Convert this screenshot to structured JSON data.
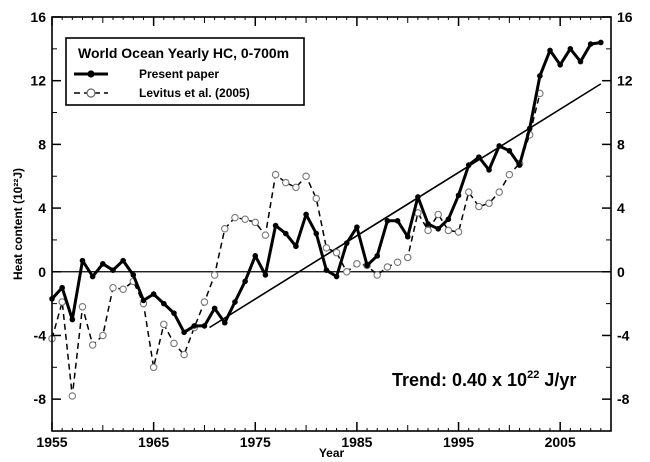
{
  "chart_data": {
    "type": "line",
    "xlabel": "Year",
    "ylabel": "Heat content (10²²J)",
    "xlim": [
      1955,
      2010
    ],
    "ylim": [
      -10,
      16
    ],
    "x_ticks": [
      1955,
      1965,
      1975,
      1985,
      1995,
      2005
    ],
    "y_ticks": [
      -8,
      -4,
      0,
      4,
      8,
      12,
      16
    ],
    "x_tick_labels": [
      "1955",
      "1965",
      "1975",
      "1985",
      "1995",
      "2005"
    ],
    "y_tick_labels": [
      "-8",
      "-4",
      "0",
      "4",
      "8",
      "12",
      "16"
    ],
    "y_tick_labels_right": [
      "-8",
      "-4",
      "0",
      "4",
      "8",
      "12",
      "16"
    ],
    "grid": false,
    "legend": {
      "title": "World Ocean Yearly HC, 0-700m",
      "position": "top-left",
      "entries": [
        "Present paper",
        "Levitus et al. (2005)"
      ]
    },
    "annotation": {
      "prefix": "Trend: 0.40 x 10",
      "superscript": "22",
      "suffix": " J/yr"
    },
    "zero_line": 0,
    "trend": {
      "x": [
        1970.5,
        2009
      ],
      "y": [
        -3.5,
        11.8
      ]
    },
    "series": [
      {
        "name": "Present paper",
        "style": "solid",
        "color": "#000000",
        "marker": "filled-circle",
        "x": [
          1955,
          1956,
          1957,
          1958,
          1959,
          1960,
          1961,
          1962,
          1963,
          1964,
          1965,
          1966,
          1967,
          1968,
          1969,
          1970,
          1971,
          1972,
          1973,
          1974,
          1975,
          1976,
          1977,
          1978,
          1979,
          1980,
          1981,
          1982,
          1983,
          1984,
          1985,
          1986,
          1987,
          1988,
          1989,
          1990,
          1991,
          1992,
          1993,
          1994,
          1995,
          1996,
          1997,
          1998,
          1999,
          2000,
          2001,
          2002,
          2003,
          2004,
          2005,
          2006,
          2007,
          2008,
          2009
        ],
        "y": [
          -1.7,
          -1.0,
          -3.0,
          0.7,
          -0.3,
          0.5,
          0.1,
          0.7,
          -0.2,
          -1.8,
          -1.4,
          -2.0,
          -2.6,
          -3.8,
          -3.4,
          -3.4,
          -2.3,
          -3.2,
          -1.9,
          -0.6,
          1.0,
          -0.2,
          2.9,
          2.4,
          1.6,
          3.6,
          2.4,
          0.1,
          -0.3,
          1.8,
          2.8,
          0.4,
          1.0,
          3.2,
          3.2,
          2.2,
          4.7,
          3.0,
          2.7,
          3.3,
          4.8,
          6.7,
          7.2,
          6.4,
          7.9,
          7.6,
          6.7,
          9.0,
          12.3,
          13.9,
          13.0,
          14.0,
          13.2,
          14.3,
          14.4
        ]
      },
      {
        "name": "Levitus et al. (2005)",
        "style": "dashed",
        "color": "#000000",
        "marker": "open-circle",
        "x": [
          1955,
          1956,
          1957,
          1958,
          1959,
          1960,
          1961,
          1962,
          1963,
          1964,
          1965,
          1966,
          1967,
          1968,
          1969,
          1970,
          1971,
          1972,
          1973,
          1974,
          1975,
          1976,
          1977,
          1978,
          1979,
          1980,
          1981,
          1982,
          1983,
          1984,
          1985,
          1986,
          1987,
          1988,
          1989,
          1990,
          1991,
          1992,
          1993,
          1994,
          1995,
          1996,
          1997,
          1998,
          1999,
          2000,
          2001,
          2002,
          2003
        ],
        "y": [
          -4.2,
          -1.9,
          -7.8,
          -2.2,
          -4.6,
          -4.0,
          -1.0,
          -1.1,
          -0.6,
          -2.0,
          -6.0,
          -3.3,
          -4.5,
          -5.2,
          -3.5,
          -1.9,
          -0.2,
          2.7,
          3.4,
          3.3,
          3.1,
          2.3,
          6.1,
          5.6,
          5.3,
          6.0,
          4.6,
          1.5,
          1.2,
          0.0,
          0.5,
          0.4,
          -0.2,
          0.3,
          0.6,
          0.9,
          3.7,
          2.6,
          3.6,
          2.6,
          2.5,
          5.0,
          4.1,
          4.3,
          5.0,
          6.1,
          6.8,
          8.6,
          11.2
        ]
      }
    ]
  }
}
